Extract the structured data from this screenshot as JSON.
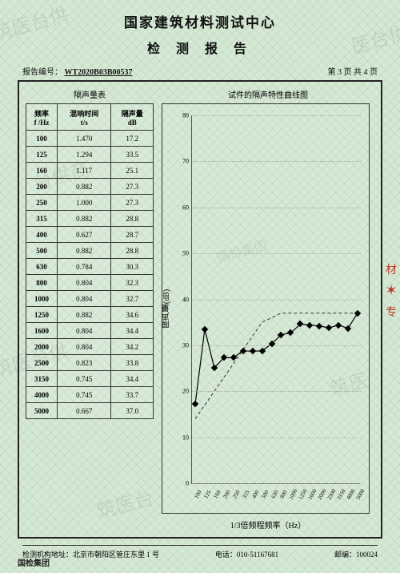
{
  "header": {
    "org": "国家建筑材料测试中心",
    "report": "检 测 报 告",
    "no_label": "报告编号：",
    "no_value": "WT2020B03B00537",
    "page": "第 3 页 共 4 页"
  },
  "table": {
    "title": "隔声量表",
    "cols": [
      "频率\nf /Hz",
      "混响时间\nt/s",
      "隔声量\ndB"
    ],
    "rows": [
      [
        "100",
        "1.470",
        "17.2"
      ],
      [
        "125",
        "1.294",
        "33.5"
      ],
      [
        "160",
        "1.117",
        "25.1"
      ],
      [
        "200",
        "0.882",
        "27.3"
      ],
      [
        "250",
        "1.000",
        "27.3"
      ],
      [
        "315",
        "0.882",
        "28.8"
      ],
      [
        "400",
        "0.627",
        "28.7"
      ],
      [
        "500",
        "0.882",
        "28.8"
      ],
      [
        "630",
        "0.784",
        "30.3"
      ],
      [
        "800",
        "0.804",
        "32.3"
      ],
      [
        "1000",
        "0.804",
        "32.7"
      ],
      [
        "1250",
        "0.882",
        "34.6"
      ],
      [
        "1600",
        "0.804",
        "34.4"
      ],
      [
        "2000",
        "0.804",
        "34.2"
      ],
      [
        "2500",
        "0.823",
        "33.8"
      ],
      [
        "3150",
        "0.745",
        "34.4"
      ],
      [
        "4000",
        "0.745",
        "33.7"
      ],
      [
        "5000",
        "0.667",
        "37.0"
      ]
    ]
  },
  "chart": {
    "title": "试件的隔声特性曲线图",
    "ylabel": "隔声量(dB)",
    "xlabel": "1/3倍频程频率（Hz）",
    "ylim": [
      0,
      80
    ],
    "ytick_step": 10,
    "yticks": [
      0,
      10,
      20,
      30,
      40,
      50,
      60,
      70,
      80
    ],
    "x_categories": [
      "100",
      "125",
      "160",
      "200",
      "250",
      "315",
      "400",
      "500",
      "630",
      "800",
      "1000",
      "1250",
      "1600",
      "2000",
      "2500",
      "3150",
      "4000",
      "5000"
    ],
    "series": {
      "values": [
        17.2,
        33.5,
        25.1,
        27.3,
        27.3,
        28.8,
        28.7,
        28.8,
        30.3,
        32.3,
        32.7,
        34.6,
        34.4,
        34.2,
        33.8,
        34.4,
        33.7,
        37.0
      ],
      "color": "#000000",
      "line_width": 1.2,
      "marker": "diamond",
      "marker_size": 6
    },
    "reference": {
      "values": [
        14,
        17,
        20,
        23,
        26,
        29,
        32,
        35,
        36,
        37,
        37,
        37,
        37,
        37,
        37,
        37,
        37,
        37
      ],
      "style": "dashed",
      "color": "#333333",
      "line_width": 1
    },
    "background_color": "transparent",
    "grid_color": "#aaaaaa"
  },
  "footer": {
    "addr": "检测机构地址：北京市朝阳区管庄东里 1 号",
    "tel": "电话：010-51167681",
    "zip": "邮编：100024"
  },
  "corp": "国检集团",
  "watermarks": [
    "筑医台供",
    "医台供",
    "台供商",
    "国检集团",
    "筑医",
    "筑医台",
    "筑"
  ]
}
